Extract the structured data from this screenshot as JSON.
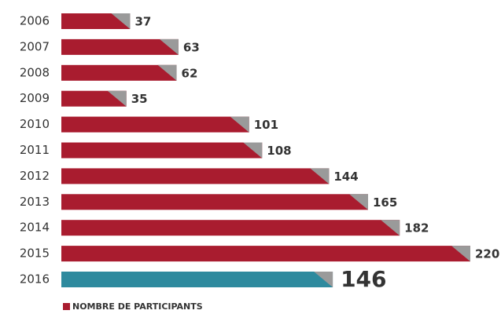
{
  "chart_data": {
    "type": "bar",
    "orientation": "horizontal",
    "categories": [
      "2006",
      "2007",
      "2008",
      "2009",
      "2010",
      "2011",
      "2012",
      "2013",
      "2014",
      "2015",
      "2016"
    ],
    "series": [
      {
        "name": "NOMBRE DE PARTICIPANTS",
        "color": "#a91c2f",
        "values": [
          37,
          63,
          62,
          35,
          101,
          108,
          144,
          165,
          182,
          220,
          146
        ]
      }
    ],
    "colors": [
      "#a91c2f",
      "#a91c2f",
      "#a91c2f",
      "#a91c2f",
      "#a91c2f",
      "#a91c2f",
      "#a91c2f",
      "#a91c2f",
      "#a91c2f",
      "#a91c2f",
      "#2e8a9e"
    ],
    "legend": "bottom-left"
  }
}
